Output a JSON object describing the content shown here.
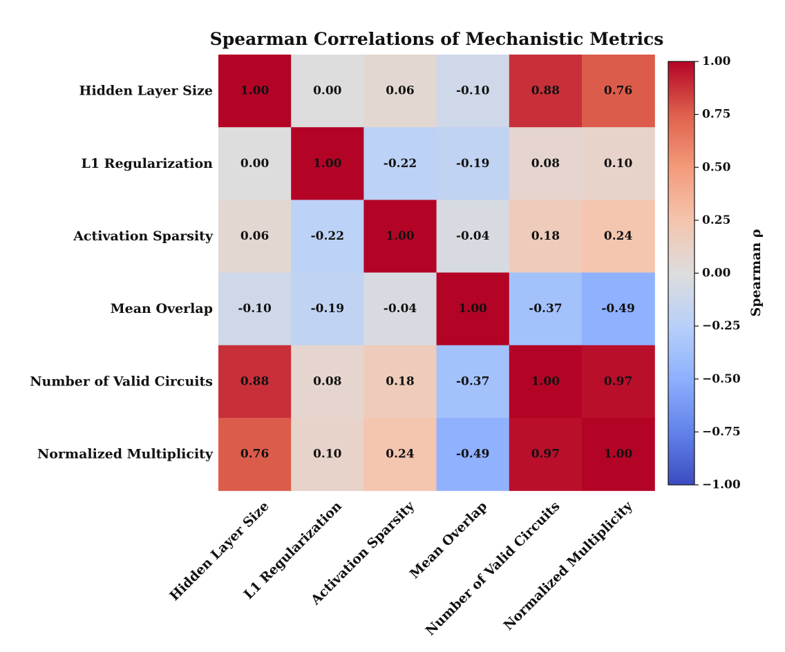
{
  "chart_data": {
    "type": "heatmap",
    "title": "Spearman Correlations of Mechanistic Metrics",
    "row_labels": [
      "Hidden Layer Size",
      "L1 Regularization",
      "Activation Sparsity",
      "Mean Overlap",
      "Number of Valid Circuits",
      "Normalized Multiplicity"
    ],
    "col_labels": [
      "Hidden Layer Size",
      "L1 Regularization",
      "Activation Sparsity",
      "Mean Overlap",
      "Number of Valid Circuits",
      "Normalized Multiplicity"
    ],
    "values": [
      [
        1.0,
        0.0,
        0.06,
        -0.1,
        0.88,
        0.76
      ],
      [
        0.0,
        1.0,
        -0.22,
        -0.19,
        0.08,
        0.1
      ],
      [
        0.06,
        -0.22,
        1.0,
        -0.04,
        0.18,
        0.24
      ],
      [
        -0.1,
        -0.19,
        -0.04,
        1.0,
        -0.37,
        -0.49
      ],
      [
        0.88,
        0.08,
        0.18,
        -0.37,
        1.0,
        0.97
      ],
      [
        0.76,
        0.1,
        0.24,
        -0.49,
        0.97,
        1.0
      ]
    ],
    "value_range": [
      -1.0,
      1.0
    ],
    "colormap": "coolwarm",
    "colorbar": {
      "label": "Spearman ρ",
      "ticks": [
        1.0,
        0.75,
        0.5,
        0.25,
        0.0,
        -0.25,
        -0.5,
        -0.75,
        -1.0
      ],
      "tick_labels": [
        "1.00",
        "0.75",
        "0.50",
        "0.25",
        "0.00",
        "−0.25",
        "−0.50",
        "−0.75",
        "−1.00"
      ]
    }
  }
}
